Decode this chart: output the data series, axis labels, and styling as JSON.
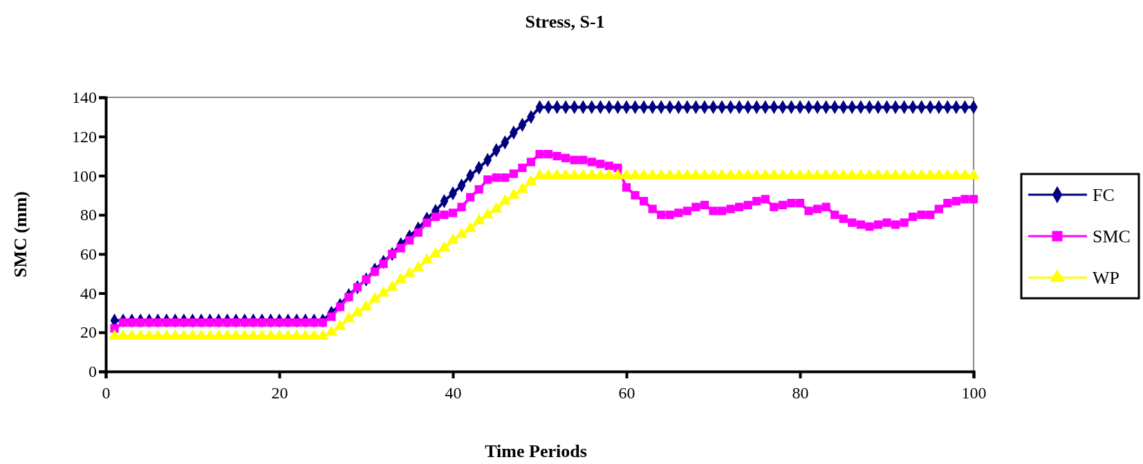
{
  "chart_data": {
    "type": "line",
    "title": "Stress, S-1",
    "xlabel": "Time Periods",
    "ylabel": "SMC (mm)",
    "x": [
      1,
      2,
      3,
      4,
      5,
      6,
      7,
      8,
      9,
      10,
      11,
      12,
      13,
      14,
      15,
      16,
      17,
      18,
      19,
      20,
      21,
      22,
      23,
      24,
      25,
      26,
      27,
      28,
      29,
      30,
      31,
      32,
      33,
      34,
      35,
      36,
      37,
      38,
      39,
      40,
      41,
      42,
      43,
      44,
      45,
      46,
      47,
      48,
      49,
      50,
      51,
      52,
      53,
      54,
      55,
      56,
      57,
      58,
      59,
      60,
      61,
      62,
      63,
      64,
      65,
      66,
      67,
      68,
      69,
      70,
      71,
      72,
      73,
      74,
      75,
      76,
      77,
      78,
      79,
      80,
      81,
      82,
      83,
      84,
      85,
      86,
      87,
      88,
      89,
      90,
      91,
      92,
      93,
      94,
      95,
      96,
      97,
      98,
      99,
      100
    ],
    "series": [
      {
        "name": "FC",
        "color": "#000080",
        "marker": "diamond",
        "values": [
          26,
          26,
          26,
          26,
          26,
          26,
          26,
          26,
          26,
          26,
          26,
          26,
          26,
          26,
          26,
          26,
          26,
          26,
          26,
          26,
          26,
          26,
          26,
          26,
          26,
          30,
          34,
          39,
          43,
          47,
          52,
          56,
          60,
          65,
          69,
          73,
          78,
          82,
          87,
          91,
          95,
          100,
          104,
          108,
          113,
          117,
          122,
          126,
          130,
          135,
          135,
          135,
          135,
          135,
          135,
          135,
          135,
          135,
          135,
          135,
          135,
          135,
          135,
          135,
          135,
          135,
          135,
          135,
          135,
          135,
          135,
          135,
          135,
          135,
          135,
          135,
          135,
          135,
          135,
          135,
          135,
          135,
          135,
          135,
          135,
          135,
          135,
          135,
          135,
          135,
          135,
          135,
          135,
          135,
          135,
          135,
          135,
          135,
          135,
          135
        ]
      },
      {
        "name": "SMC",
        "color": "#ff00ff",
        "marker": "square",
        "values": [
          22,
          25,
          25,
          25,
          25,
          25,
          25,
          25,
          25,
          25,
          25,
          25,
          25,
          25,
          25,
          25,
          25,
          25,
          25,
          25,
          25,
          25,
          25,
          25,
          25,
          28,
          33,
          38,
          43,
          47,
          51,
          55,
          60,
          63,
          67,
          71,
          76,
          79,
          80,
          81,
          84,
          89,
          93,
          98,
          99,
          99,
          101,
          104,
          107,
          111,
          111,
          110,
          109,
          108,
          108,
          107,
          106,
          105,
          104,
          94,
          90,
          87,
          83,
          80,
          80,
          81,
          82,
          84,
          85,
          82,
          82,
          83,
          84,
          85,
          87,
          88,
          84,
          85,
          86,
          86,
          82,
          83,
          84,
          80,
          78,
          76,
          75,
          74,
          75,
          76,
          75,
          76,
          79,
          80,
          80,
          83,
          86,
          87,
          88,
          88
        ]
      },
      {
        "name": "WP",
        "color": "#ffff00",
        "marker": "triangle",
        "values": [
          18,
          18,
          18,
          18,
          18,
          18,
          18,
          18,
          18,
          18,
          18,
          18,
          18,
          18,
          18,
          18,
          18,
          18,
          18,
          18,
          18,
          18,
          18,
          18,
          18,
          20,
          23,
          27,
          30,
          33,
          37,
          40,
          43,
          47,
          50,
          53,
          57,
          60,
          63,
          67,
          70,
          73,
          77,
          80,
          83,
          87,
          90,
          93,
          97,
          100,
          100,
          100,
          100,
          100,
          100,
          100,
          100,
          100,
          100,
          100,
          100,
          100,
          100,
          100,
          100,
          100,
          100,
          100,
          100,
          100,
          100,
          100,
          100,
          100,
          100,
          100,
          100,
          100,
          100,
          100,
          100,
          100,
          100,
          100,
          100,
          100,
          100,
          100,
          100,
          100,
          100,
          100,
          100,
          100,
          100,
          100,
          100,
          100,
          100,
          100
        ]
      }
    ],
    "xlim": [
      0,
      100
    ],
    "xticks": [
      0,
      20,
      40,
      60,
      80,
      100
    ],
    "ylim": [
      0,
      140
    ],
    "yticks": [
      0,
      20,
      40,
      60,
      80,
      100,
      120,
      140
    ],
    "grid": false,
    "legend": "right",
    "line_style": "solid"
  }
}
